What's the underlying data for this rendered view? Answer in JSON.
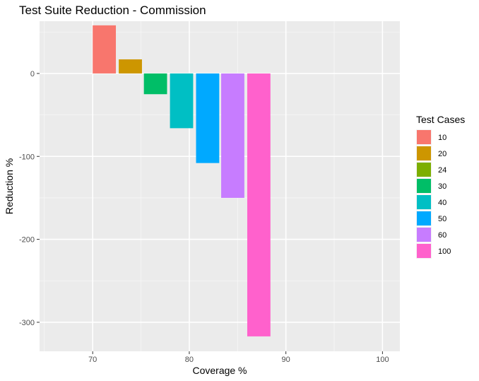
{
  "chart_data": {
    "type": "bar",
    "title": "Test Suite Reduction - Commission",
    "xlabel": "Coverage %",
    "ylabel": "Reduction %",
    "xlim": [
      64.5,
      101.8
    ],
    "ylim": [
      -335,
      63
    ],
    "x_ticks": [
      70,
      80,
      90,
      100
    ],
    "y_ticks": [
      0,
      -100,
      -200,
      -300
    ],
    "grid": true,
    "legend": {
      "title": "Test Cases",
      "position": "right"
    },
    "series": [
      {
        "name": "10",
        "x": 71.2,
        "value": 58,
        "color": "#F8766D"
      },
      {
        "name": "20",
        "x": 73.9,
        "value": 17,
        "color": "#CD9600"
      },
      {
        "name": "24",
        "x": null,
        "value": null,
        "color": "#7CAE00"
      },
      {
        "name": "30",
        "x": 76.5,
        "value": -25,
        "color": "#00BE67"
      },
      {
        "name": "40",
        "x": 79.2,
        "value": -66,
        "color": "#00BFC4"
      },
      {
        "name": "50",
        "x": 81.9,
        "value": -108,
        "color": "#00A9FF"
      },
      {
        "name": "60",
        "x": 84.5,
        "value": -150,
        "color": "#C77CFF"
      },
      {
        "name": "100",
        "x": 87.2,
        "value": -317,
        "color": "#FF61CC"
      }
    ],
    "bar_width": 2.4
  }
}
